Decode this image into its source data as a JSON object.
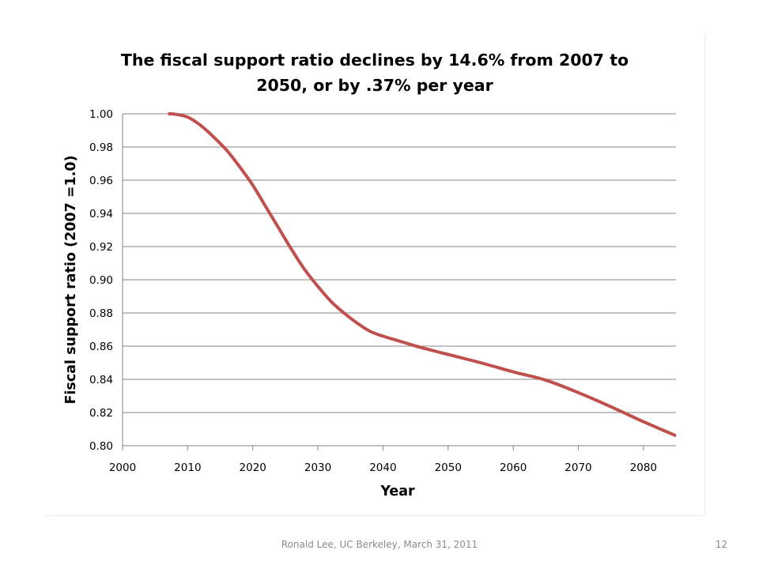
{
  "slide": {
    "footer": "Ronald Lee, UC Berkeley, March 31, 2011",
    "page_number": "12"
  },
  "chart_data": {
    "type": "line",
    "title_lines": [
      "The fiscal support ratio declines by 14.6% from 2007 to",
      "2050, or by .37% per year"
    ],
    "xlabel": "Year",
    "ylabel": "Fiscal support ratio (2007 =1.0)",
    "xlim": [
      2000,
      2085
    ],
    "ylim": [
      0.8,
      1.0
    ],
    "x_ticks": [
      2000,
      2010,
      2020,
      2030,
      2040,
      2050,
      2060,
      2070,
      2080
    ],
    "y_ticks": [
      "1.00",
      "0.98",
      "0.96",
      "0.94",
      "0.92",
      "0.90",
      "0.88",
      "0.86",
      "0.84",
      "0.82",
      "0.80"
    ],
    "grid": "horizontal",
    "legend": "none",
    "series": [
      {
        "color": "#C0504D",
        "x": [
          2007,
          2008,
          2010,
          2012,
          2014,
          2016,
          2018,
          2020,
          2022,
          2024,
          2026,
          2028,
          2030,
          2032,
          2034,
          2036,
          2038,
          2040,
          2043,
          2046,
          2050,
          2055,
          2060,
          2065,
          2070,
          2075,
          2080,
          2085
        ],
        "y": [
          1.0,
          0.9998,
          0.998,
          0.993,
          0.986,
          0.978,
          0.968,
          0.957,
          0.944,
          0.931,
          0.918,
          0.906,
          0.896,
          0.887,
          0.88,
          0.874,
          0.869,
          0.866,
          0.8625,
          0.859,
          0.855,
          0.85,
          0.8445,
          0.8395,
          0.832,
          0.8235,
          0.8145,
          0.806
        ]
      }
    ]
  }
}
